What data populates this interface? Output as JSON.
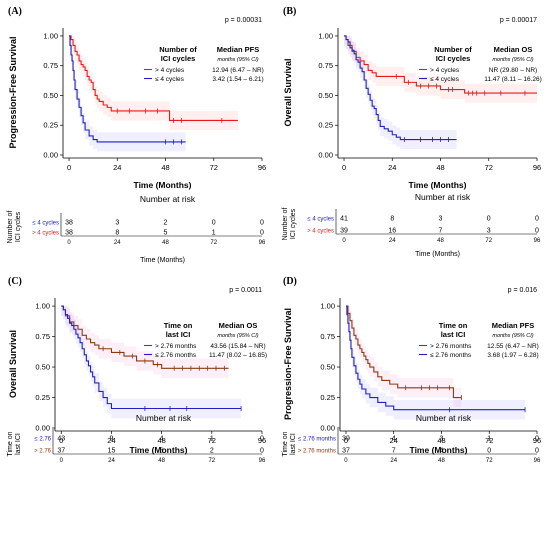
{
  "chart_data": [
    {
      "type": "line",
      "panel": "(A)",
      "ylabel": "Progression-Free Survival",
      "xlabel": "Time (Months)",
      "pvalue": "p = 0.00031",
      "xlim": [
        -3,
        96
      ],
      "ylim": [
        0,
        1.05
      ],
      "xticks": [
        "0",
        "24",
        "48",
        "72",
        "96"
      ],
      "yticks": [
        "0.00",
        "0.25",
        "0.50",
        "0.75",
        "1.00"
      ],
      "legend_title": [
        "Number of",
        "ICI cycles"
      ],
      "median_header": "Median PFS",
      "median_sub": "months (95% CI)",
      "series": [
        {
          "name": "> 4 cycles",
          "color": "#e41a1c",
          "median": "12.94 (6.47 – NR)",
          "x": [
            0,
            1,
            2,
            3,
            4,
            5,
            6,
            7,
            8,
            9,
            10,
            11,
            12,
            13,
            14,
            15,
            17,
            19,
            21,
            24,
            50,
            84
          ],
          "y": [
            1.0,
            0.97,
            0.92,
            0.87,
            0.84,
            0.79,
            0.76,
            0.74,
            0.71,
            0.66,
            0.63,
            0.61,
            0.55,
            0.5,
            0.47,
            0.45,
            0.42,
            0.4,
            0.37,
            0.37,
            0.29,
            0.29
          ],
          "censor_x": [
            24,
            30,
            38,
            44,
            52,
            56,
            76
          ]
        },
        {
          "name": "≤ 4 cycles",
          "color": "#2020c0",
          "median": "3.42 (1.54 – 6.21)",
          "x": [
            0,
            0.5,
            1,
            1.5,
            2,
            2.5,
            3,
            4,
            5,
            6,
            7,
            8,
            10,
            12,
            14,
            20,
            58
          ],
          "y": [
            1.0,
            0.92,
            0.84,
            0.79,
            0.71,
            0.63,
            0.55,
            0.47,
            0.4,
            0.33,
            0.27,
            0.21,
            0.16,
            0.13,
            0.11,
            0.11,
            0.11
          ],
          "censor_x": [
            48,
            52,
            56
          ]
        }
      ],
      "risk_title": "Number at risk",
      "risk_axis_label": [
        "Number of",
        "ICI cycles"
      ],
      "risk_xlabel": "Time (Months)",
      "risk_rows": [
        {
          "label": "≤ 4 cycles",
          "color": "#2020c0",
          "values": [
            "38",
            "3",
            "2",
            "0",
            "0"
          ]
        },
        {
          "label": "> 4 cycles",
          "color": "#e41a1c",
          "values": [
            "38",
            "8",
            "5",
            "1",
            "0"
          ]
        }
      ]
    },
    {
      "type": "line",
      "panel": "(B)",
      "ylabel": "Overall Survival",
      "xlabel": "Time (Months)",
      "pvalue": "p = 0.00017",
      "xlim": [
        -3,
        96
      ],
      "ylim": [
        0,
        1.05
      ],
      "xticks": [
        "0",
        "24",
        "48",
        "72",
        "96"
      ],
      "yticks": [
        "0.00",
        "0.25",
        "0.50",
        "0.75",
        "1.00"
      ],
      "legend_title": [
        "Number of",
        "ICI cycles"
      ],
      "median_header": "Median OS",
      "median_sub": "months (95% CI)",
      "series": [
        {
          "name": "> 4 cycles",
          "color": "#e41a1c",
          "median": "NR (29.80 – NR)",
          "x": [
            0,
            1,
            2,
            4,
            6,
            8,
            10,
            12,
            14,
            16,
            20,
            24,
            30,
            36,
            48,
            60,
            96
          ],
          "y": [
            1.0,
            0.97,
            0.92,
            0.87,
            0.82,
            0.79,
            0.76,
            0.71,
            0.69,
            0.66,
            0.66,
            0.66,
            0.61,
            0.58,
            0.55,
            0.52,
            0.52
          ],
          "censor_x": [
            8,
            26,
            32,
            38,
            42,
            46,
            52,
            54,
            62,
            64,
            66,
            70,
            78,
            90
          ]
        },
        {
          "name": "≤ 4 cycles",
          "color": "#2020c0",
          "median": "11.47 (8.11 – 16.26)",
          "x": [
            0,
            1,
            2,
            3,
            4,
            5,
            6,
            7,
            8,
            9,
            10,
            11,
            12,
            13,
            14,
            15,
            16,
            17,
            18,
            20,
            22,
            24,
            26,
            28,
            56
          ],
          "y": [
            1.0,
            0.97,
            0.95,
            0.9,
            0.88,
            0.85,
            0.8,
            0.78,
            0.73,
            0.7,
            0.63,
            0.56,
            0.51,
            0.46,
            0.41,
            0.39,
            0.34,
            0.29,
            0.24,
            0.22,
            0.2,
            0.17,
            0.15,
            0.13,
            0.13
          ],
          "censor_x": [
            30,
            38,
            44,
            48,
            52
          ]
        }
      ],
      "risk_title": "Number at risk",
      "risk_axis_label": [
        "Number of",
        "ICI cycles"
      ],
      "risk_xlabel": "Time (Months)",
      "risk_rows": [
        {
          "label": "≤ 4 cycles",
          "color": "#2020c0",
          "values": [
            "41",
            "8",
            "3",
            "0",
            "0"
          ]
        },
        {
          "label": "> 4 cycles",
          "color": "#e41a1c",
          "values": [
            "39",
            "16",
            "7",
            "3",
            "0"
          ]
        }
      ]
    },
    {
      "type": "line",
      "panel": "(C)",
      "ylabel": "Overall Survival",
      "xlabel": "Time (Months)",
      "pvalue": "p = 0.0011",
      "xlim": [
        -3,
        96
      ],
      "ylim": [
        0,
        1.05
      ],
      "xticks": [
        "0",
        "24",
        "48",
        "72",
        "96"
      ],
      "yticks": [
        "0.00",
        "0.25",
        "0.50",
        "0.75",
        "1.00"
      ],
      "legend_title": [
        "Time on",
        "last ICI"
      ],
      "median_header": "Median OS",
      "median_sub": "months (95% CI)",
      "series": [
        {
          "name": "> 2.76 months",
          "color": "#8b3a0f",
          "median": "43.56 (15.84 – NR)",
          "x": [
            0,
            1,
            2,
            4,
            6,
            8,
            10,
            12,
            14,
            16,
            18,
            24,
            30,
            36,
            44,
            48,
            80
          ],
          "y": [
            1.0,
            0.97,
            0.92,
            0.87,
            0.84,
            0.81,
            0.76,
            0.73,
            0.7,
            0.68,
            0.65,
            0.62,
            0.59,
            0.55,
            0.52,
            0.49,
            0.49
          ],
          "censor_x": [
            20,
            28,
            34,
            40,
            46,
            54,
            58,
            62,
            66,
            70,
            74,
            78
          ]
        },
        {
          "name": "≤ 2.76 months",
          "color": "#2020c0",
          "median": "11.47 (8.02 – 16.85)",
          "x": [
            0,
            1,
            2,
            3,
            4,
            5,
            6,
            7,
            8,
            9,
            10,
            11,
            12,
            13,
            14,
            15,
            16,
            18,
            20,
            22,
            24,
            86
          ],
          "y": [
            1.0,
            0.97,
            0.93,
            0.9,
            0.86,
            0.84,
            0.81,
            0.77,
            0.74,
            0.7,
            0.65,
            0.6,
            0.55,
            0.51,
            0.46,
            0.42,
            0.37,
            0.3,
            0.25,
            0.2,
            0.16,
            0.16
          ],
          "censor_x": [
            40,
            52,
            60,
            86
          ]
        }
      ],
      "risk_title": "Number at risk",
      "risk_axis_label": [
        "Time on",
        "last ICI"
      ],
      "risk_xlabel": "",
      "risk_rows": [
        {
          "label": "≤ 2.76",
          "color": "#2020c0",
          "values": [
            "43",
            "9",
            "4",
            "1",
            "0"
          ]
        },
        {
          "label": "> 2.76",
          "color": "#8b3a0f",
          "values": [
            "37",
            "15",
            "6",
            "2",
            "0"
          ]
        }
      ]
    },
    {
      "type": "line",
      "panel": "(D)",
      "ylabel": "Progression-Free Survival",
      "xlabel": "Time (Months)",
      "pvalue": "p = 0.016",
      "xlim": [
        -3,
        96
      ],
      "ylim": [
        0,
        1.05
      ],
      "xticks": [
        "0",
        "24",
        "48",
        "72",
        "96"
      ],
      "yticks": [
        "0.00",
        "0.25",
        "0.50",
        "0.75",
        "1.00"
      ],
      "legend_title": [
        "Time on",
        "last ICI"
      ],
      "median_header": "Median PFS",
      "median_sub": "months (95% CI)",
      "series": [
        {
          "name": "> 2.76 months",
          "color": "#8b3a0f",
          "median": "12.55 (6.47 – NR)",
          "x": [
            0,
            1,
            2,
            3,
            4,
            5,
            6,
            7,
            8,
            9,
            10,
            11,
            12,
            14,
            16,
            18,
            22,
            26,
            54,
            58
          ],
          "y": [
            1.0,
            0.94,
            0.88,
            0.82,
            0.76,
            0.73,
            0.68,
            0.65,
            0.62,
            0.59,
            0.56,
            0.53,
            0.5,
            0.46,
            0.42,
            0.39,
            0.36,
            0.33,
            0.25,
            0.25
          ],
          "censor_x": [
            30,
            38,
            42,
            46,
            52,
            58
          ]
        },
        {
          "name": "≤ 2.76 months",
          "color": "#2020c0",
          "median": "3.68 (1.97 – 6.28)",
          "x": [
            0,
            0.5,
            1,
            1.5,
            2,
            2.5,
            3,
            4,
            5,
            6,
            7,
            8,
            10,
            12,
            16,
            20,
            24,
            90
          ],
          "y": [
            1.0,
            0.93,
            0.86,
            0.79,
            0.72,
            0.65,
            0.58,
            0.51,
            0.45,
            0.4,
            0.36,
            0.32,
            0.28,
            0.25,
            0.21,
            0.18,
            0.15,
            0.15
          ],
          "censor_x": [
            52,
            90
          ]
        }
      ],
      "risk_title": "Number at risk",
      "risk_axis_label": [
        "Time on",
        "last ICI"
      ],
      "risk_xlabel": "",
      "risk_rows": [
        {
          "label": "≤ 2.76 months",
          "color": "#2020c0",
          "values": [
            "39",
            "4",
            "3",
            "1",
            "0"
          ]
        },
        {
          "label": "> 2.76 months",
          "color": "#8b3a0f",
          "values": [
            "37",
            "7",
            "4",
            "0",
            "0"
          ]
        }
      ]
    }
  ]
}
